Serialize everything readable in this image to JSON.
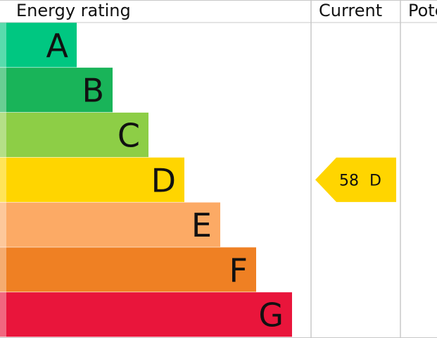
{
  "chart_data": {
    "type": "bar",
    "columns": [
      "Energy rating",
      "Current",
      "Potential"
    ],
    "bands": [
      {
        "letter": "A",
        "color": "#00c781"
      },
      {
        "letter": "B",
        "color": "#19b459"
      },
      {
        "letter": "C",
        "color": "#8dce46"
      },
      {
        "letter": "D",
        "color": "#ffd500"
      },
      {
        "letter": "E",
        "color": "#fcaa65"
      },
      {
        "letter": "F",
        "color": "#ef8023"
      },
      {
        "letter": "G",
        "color": "#e9153b"
      }
    ],
    "current": {
      "value": "58",
      "band": "D",
      "color": "#ffd500"
    }
  }
}
